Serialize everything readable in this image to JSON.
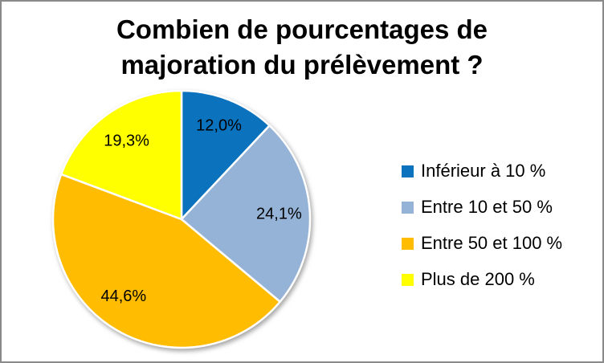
{
  "title": "Combien de pourcentages de majoration du prélèvement ?",
  "chart_data": {
    "type": "pie",
    "title": "Combien de pourcentages de majoration du prélèvement ?",
    "categories": [
      "Inférieur à 10 %",
      "Entre 10 et 50 %",
      "Entre 50 et 100 %",
      "Plus de 200 %"
    ],
    "values": [
      12.0,
      24.1,
      44.6,
      19.3
    ],
    "labels": [
      "12,0%",
      "24,1%",
      "44,6%",
      "19,3%"
    ],
    "colors": [
      "#0B72BE",
      "#95B3D7",
      "#FFBC00",
      "#FFFF00"
    ],
    "legend_position": "right",
    "layout": {
      "center": [
        224,
        271
      ],
      "radius": 160,
      "start_angle_deg": 0,
      "direction": "clockwise",
      "label_radius": [
        0.79,
        0.76,
        0.745,
        0.75
      ],
      "label_angle_offsets_deg": [
        0,
        0,
        7,
        0
      ]
    }
  },
  "frame": {
    "border_color": "#8a8a8a",
    "background": "#ffffff"
  }
}
